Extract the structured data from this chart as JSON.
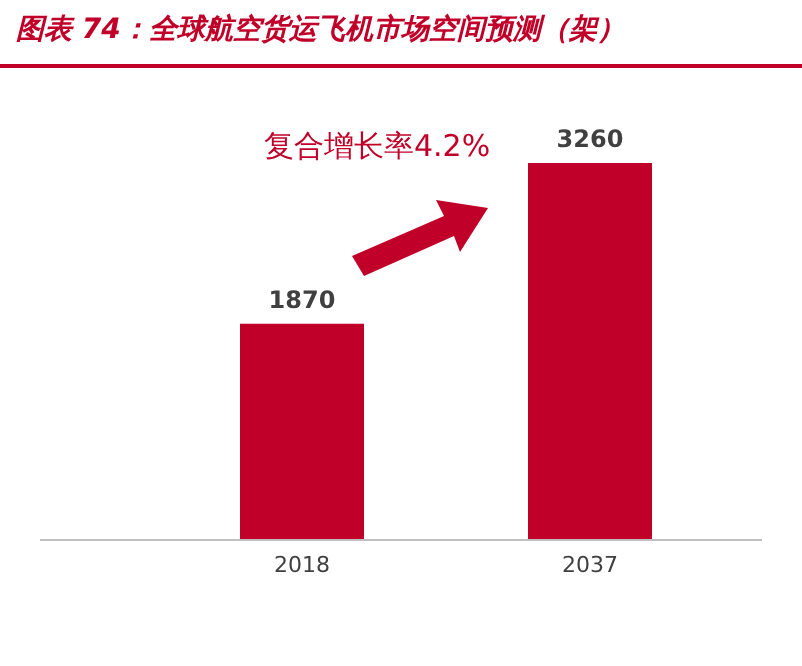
{
  "chart_data": {
    "type": "bar",
    "title": "图表 74：全球航空货运飞机市场空间预测（架）",
    "categories": [
      "2018",
      "2037"
    ],
    "values": [
      1870,
      3260
    ],
    "color": "#c00028",
    "data_labels": true,
    "grid": false,
    "legend": false,
    "annotations": [
      {
        "text": "复合增长率4.2%"
      }
    ]
  }
}
